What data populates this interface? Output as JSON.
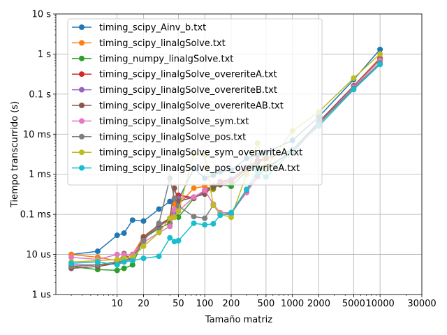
{
  "chart_data": {
    "type": "line",
    "xlabel": "Tamaño matriz",
    "ylabel": "Tiempo transcurrido (s)",
    "xscale": "log",
    "yscale": "log",
    "xlim": [
      2,
      30000
    ],
    "ylim": [
      1e-06,
      10
    ],
    "grid": true,
    "legend_position": "upper-left",
    "x_ticks": [
      {
        "value": 10,
        "label": "10"
      },
      {
        "value": 20,
        "label": "20"
      },
      {
        "value": 50,
        "label": "50"
      },
      {
        "value": 100,
        "label": "100"
      },
      {
        "value": 200,
        "label": "200"
      },
      {
        "value": 500,
        "label": "500"
      },
      {
        "value": 1000,
        "label": "1000"
      },
      {
        "value": 2000,
        "label": "2000"
      },
      {
        "value": 5000,
        "label": "5000"
      },
      {
        "value": 10000,
        "label": "10000"
      },
      {
        "value": 30000,
        "label": "30000"
      }
    ],
    "y_ticks": [
      {
        "value": 1e-06,
        "label": "1 us"
      },
      {
        "value": 1e-05,
        "label": "10 us"
      },
      {
        "value": 0.0001,
        "label": "0.1 ms"
      },
      {
        "value": 0.001,
        "label": "1 ms"
      },
      {
        "value": 0.01,
        "label": "10 ms"
      },
      {
        "value": 0.1,
        "label": "0.1 s"
      },
      {
        "value": 1,
        "label": "1 s"
      },
      {
        "value": 10,
        "label": "10 s"
      }
    ],
    "series": [
      {
        "name": "timing_scipy_Ainv_b.txt",
        "color": "#1f77b4",
        "x": [
          3,
          6,
          10,
          12,
          15,
          20,
          30,
          40,
          45,
          50,
          75,
          100,
          125,
          150,
          200,
          300,
          400,
          500,
          1000,
          2000,
          5000,
          10000
        ],
        "y": [
          1e-05,
          1.2e-05,
          3e-05,
          3.4e-05,
          7.2e-05,
          6.8e-05,
          0.000135,
          0.00021,
          0.00021,
          0.00023,
          0.0014,
          0.0008,
          0.00095,
          0.00115,
          0.00125,
          0.0025,
          0.003,
          0.0035,
          0.007,
          0.027,
          0.23,
          1.3
        ]
      },
      {
        "name": "timing_scipy_linalgSolve.txt",
        "color": "#ff7f0e",
        "x": [
          3,
          6,
          10,
          12,
          15,
          20,
          30,
          40,
          45,
          50,
          75,
          100,
          125,
          150,
          200,
          300,
          400,
          500,
          1000,
          2000,
          5000,
          10000
        ],
        "y": [
          1e-05,
          8.5e-06,
          7e-06,
          8e-06,
          1e-05,
          2.8e-05,
          5.5e-05,
          8e-05,
          0.00018,
          0.00017,
          0.00045,
          0.0005,
          0.00042,
          0.0006,
          0.0007,
          0.0013,
          0.002,
          0.0025,
          0.004,
          0.02,
          0.16,
          0.8
        ]
      },
      {
        "name": "timing_numpy_linalgSolve.txt",
        "color": "#2ca02c",
        "x": [
          3,
          6,
          10,
          12,
          15,
          20,
          30,
          40,
          45,
          50,
          75,
          100,
          125,
          150,
          200,
          300,
          400,
          500,
          1000,
          2000,
          5000,
          10000
        ],
        "y": [
          5e-06,
          4.2e-06,
          4e-06,
          4.5e-06,
          5.5e-06,
          2.5e-05,
          4.5e-05,
          6e-05,
          9e-05,
          8.5e-05,
          0.00025,
          0.0004,
          0.00045,
          0.00055,
          0.0005,
          0.0012,
          0.0015,
          0.0013,
          0.004,
          0.02,
          0.15,
          0.7
        ]
      },
      {
        "name": "timing_scipy_linalgSolve_overeriteA.txt",
        "color": "#d62728",
        "x": [
          3,
          6,
          10,
          12,
          15,
          20,
          30,
          40,
          45,
          50,
          75,
          100,
          125,
          150,
          200,
          300,
          400,
          500,
          1000,
          2000,
          5000,
          10000
        ],
        "y": [
          5e-06,
          5.5e-06,
          6e-06,
          7e-06,
          8e-06,
          2.5e-05,
          5e-05,
          7.5e-05,
          0.0001,
          0.0003,
          0.00026,
          0.0004,
          0.0005,
          0.00065,
          0.00075,
          0.0014,
          0.0022,
          0.0025,
          0.004,
          0.02,
          0.16,
          0.75
        ]
      },
      {
        "name": "timing_scipy_linalgSolve_overeriteB.txt",
        "color": "#9467bd",
        "x": [
          3,
          6,
          10,
          12,
          15,
          20,
          30,
          40,
          45,
          50,
          75,
          100,
          125,
          150,
          200,
          300,
          400,
          500,
          1000,
          2000,
          5000,
          10000
        ],
        "y": [
          5.5e-06,
          5.5e-06,
          6.5e-06,
          7e-06,
          8.5e-06,
          2.6e-05,
          5e-05,
          8e-05,
          0.00011,
          0.00025,
          0.00027,
          0.00035,
          0.0005,
          0.0006,
          0.00075,
          0.0015,
          0.002,
          0.0025,
          0.004,
          0.02,
          0.16,
          0.75
        ]
      },
      {
        "name": "timing_scipy_linalgSolve_overeriteAB.txt",
        "color": "#8c564b",
        "x": [
          3,
          6,
          10,
          12,
          15,
          20,
          30,
          40,
          45,
          50,
          75,
          100,
          125,
          150,
          200,
          300,
          400,
          500,
          1000,
          2000,
          5000,
          10000
        ],
        "y": [
          4.5e-06,
          5e-06,
          6e-06,
          1.05e-05,
          7e-06,
          2.7e-05,
          5.5e-05,
          8e-05,
          0.00045,
          0.00021,
          0.00027,
          0.00032,
          0.0005,
          0.00055,
          0.00065,
          0.0013,
          0.002,
          0.0025,
          0.004,
          0.02,
          0.16,
          0.75
        ]
      },
      {
        "name": "timing_scipy_linalgSolve_sym.txt",
        "color": "#e377c2",
        "x": [
          3,
          6,
          10,
          12,
          15,
          20,
          30,
          40,
          45,
          50,
          75,
          100,
          125,
          150,
          200,
          300,
          400,
          500,
          1000,
          2000,
          5000,
          10000
        ],
        "y": [
          8.5e-06,
          7.5e-06,
          1e-05,
          1e-05,
          1e-05,
          2e-05,
          3.5e-05,
          5e-05,
          0.00013,
          0.00012,
          0.00027,
          0.0004,
          0.00018,
          0.00011,
          0.00011,
          0.00035,
          0.00085,
          0.0015,
          0.0035,
          0.018,
          0.15,
          0.7
        ]
      },
      {
        "name": "timing_scipy_linalgSolve_pos.txt",
        "color": "#7f7f7f",
        "x": [
          3,
          6,
          10,
          12,
          15,
          20,
          30,
          40,
          45,
          50,
          75,
          100,
          125,
          150,
          200,
          300,
          400,
          500,
          1000,
          2000,
          5000,
          10000
        ],
        "y": [
          5e-06,
          5.5e-06,
          6.5e-06,
          7e-06,
          7.5e-06,
          2.2e-05,
          6e-05,
          0.0008,
          0.00025,
          0.00016,
          8.8e-05,
          8e-05,
          0.00017,
          0.0001,
          0.0001,
          0.0004,
          0.0009,
          0.0015,
          0.0035,
          0.018,
          0.14,
          0.6
        ]
      },
      {
        "name": "timing_scipy_linalgSolve_sym_overwriteA.txt",
        "color": "#bcbd22",
        "x": [
          3,
          6,
          10,
          12,
          15,
          20,
          30,
          40,
          45,
          50,
          75,
          100,
          125,
          150,
          200,
          300,
          400,
          500,
          1000,
          2000,
          5000,
          10000
        ],
        "y": [
          6.5e-06,
          7e-06,
          7.5e-06,
          8e-06,
          8.5e-06,
          1.6e-05,
          3.5e-05,
          8e-05,
          8.5e-05,
          0.00012,
          0.0032,
          0.003,
          0.00017,
          0.0001,
          8.5e-05,
          0.001,
          0.006,
          0.0015,
          0.012,
          0.036,
          0.25,
          1.0
        ]
      },
      {
        "name": "timing_scipy_linalgSolve_pos_overwriteA.txt",
        "color": "#17becf",
        "x": [
          3,
          6,
          10,
          12,
          15,
          20,
          30,
          40,
          45,
          50,
          75,
          100,
          125,
          150,
          200,
          300,
          400,
          500,
          1000,
          2000,
          5000,
          10000
        ],
        "y": [
          6e-06,
          6.5e-06,
          5.5e-06,
          6.5e-06,
          7e-06,
          8e-06,
          9e-06,
          2.6e-05,
          2.1e-05,
          2.2e-05,
          6e-05,
          5.5e-05,
          5.8e-05,
          9.5e-05,
          0.00011,
          0.00042,
          0.0012,
          0.00085,
          0.004,
          0.016,
          0.13,
          0.55
        ]
      }
    ]
  }
}
